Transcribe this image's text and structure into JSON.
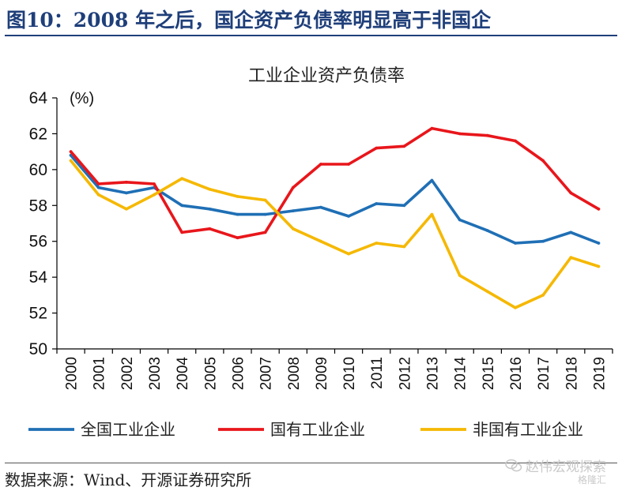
{
  "figure": {
    "title": "图10：2008 年之后，国企资产负债率明显高于非国企"
  },
  "source": "数据来源：Wind、开源证券研究所",
  "watermark": {
    "text": "赵伟宏观探索",
    "sub": "格隆汇"
  },
  "chart_data": {
    "type": "line",
    "title": "工业企业资产负债率",
    "ylabel": "(%)",
    "xlabel": "",
    "ylim": [
      50,
      64
    ],
    "yticks": [
      50,
      52,
      54,
      56,
      58,
      60,
      62,
      64
    ],
    "categories": [
      "2000",
      "2001",
      "2002",
      "2003",
      "2004",
      "2005",
      "2006",
      "2007",
      "2008",
      "2009",
      "2010",
      "2011",
      "2012",
      "2013",
      "2014",
      "2015",
      "2016",
      "2017",
      "2018",
      "2019"
    ],
    "series": [
      {
        "name": "全国工业企业",
        "color": "#1f6fb5",
        "values": [
          60.8,
          59.0,
          58.7,
          59.0,
          58.0,
          57.8,
          57.5,
          57.5,
          57.7,
          57.9,
          57.4,
          58.1,
          58.0,
          59.4,
          57.2,
          56.6,
          55.9,
          56.0,
          56.5,
          55.9
        ]
      },
      {
        "name": "国有工业企业",
        "color": "#e8161b",
        "values": [
          61.0,
          59.2,
          59.3,
          59.2,
          56.5,
          56.7,
          56.2,
          56.5,
          59.0,
          60.3,
          60.3,
          61.2,
          61.3,
          62.3,
          62.0,
          61.9,
          61.6,
          60.5,
          58.7,
          57.8
        ]
      },
      {
        "name": "非国有工业企业",
        "color": "#f5b800",
        "values": [
          60.5,
          58.6,
          57.8,
          58.6,
          59.5,
          58.9,
          58.5,
          58.3,
          56.7,
          56.0,
          55.3,
          55.9,
          55.7,
          57.5,
          54.1,
          53.2,
          52.3,
          53.0,
          55.1,
          54.6
        ]
      }
    ],
    "legend_position": "bottom"
  }
}
